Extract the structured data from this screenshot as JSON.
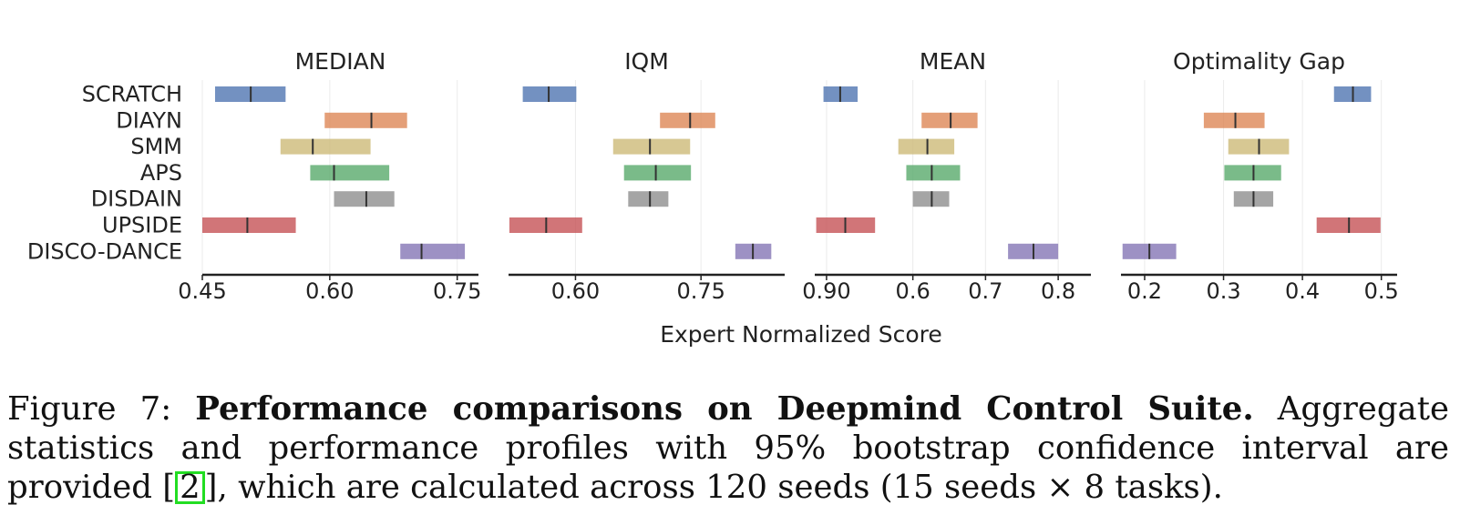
{
  "chart_data": [
    {
      "type": "interval",
      "title": "MEDIAN",
      "xticks": [
        "0.45",
        "0.60",
        "0.75"
      ],
      "xlim": [
        0.45,
        0.775
      ],
      "series": [
        {
          "name": "SCRATCH",
          "low": 0.465,
          "median": 0.507,
          "high": 0.548,
          "color": "#4c72b0"
        },
        {
          "name": "DIAYN",
          "low": 0.594,
          "median": 0.649,
          "high": 0.691,
          "color": "#dd8452"
        },
        {
          "name": "SMM",
          "low": 0.542,
          "median": 0.58,
          "high": 0.648,
          "color": "#ccb974"
        },
        {
          "name": "APS",
          "low": 0.577,
          "median": 0.605,
          "high": 0.67,
          "color": "#55a868"
        },
        {
          "name": "DISDAIN",
          "low": 0.605,
          "median": 0.643,
          "high": 0.676,
          "color": "#8c8c8c"
        },
        {
          "name": "UPSIDE",
          "low": 0.45,
          "median": 0.503,
          "high": 0.56,
          "color": "#c44e52"
        },
        {
          "name": "DISCO-DANCE",
          "low": 0.683,
          "median": 0.708,
          "high": 0.759,
          "color": "#8172b3"
        }
      ]
    },
    {
      "type": "interval",
      "title": "IQM",
      "xticks": [
        "0.60",
        "0.75",
        "0.90"
      ],
      "xlim": [
        0.52,
        0.85
      ],
      "series": [
        {
          "name": "SCRATCH",
          "low": 0.537,
          "median": 0.568,
          "high": 0.601,
          "color": "#4c72b0"
        },
        {
          "name": "DIAYN",
          "low": 0.701,
          "median": 0.737,
          "high": 0.767,
          "color": "#dd8452"
        },
        {
          "name": "SMM",
          "low": 0.645,
          "median": 0.689,
          "high": 0.737,
          "color": "#ccb974"
        },
        {
          "name": "APS",
          "low": 0.658,
          "median": 0.696,
          "high": 0.738,
          "color": "#55a868"
        },
        {
          "name": "DISDAIN",
          "low": 0.663,
          "median": 0.689,
          "high": 0.711,
          "color": "#8c8c8c"
        },
        {
          "name": "UPSIDE",
          "low": 0.521,
          "median": 0.565,
          "high": 0.608,
          "color": "#c44e52"
        },
        {
          "name": "DISCO-DANCE",
          "low": 0.791,
          "median": 0.812,
          "high": 0.834,
          "color": "#8172b3"
        }
      ]
    },
    {
      "type": "interval",
      "title": "MEAN",
      "xticks": [
        "0.6",
        "0.7",
        "0.8"
      ],
      "xlim": [
        0.465,
        0.845
      ],
      "series": [
        {
          "name": "SCRATCH",
          "low": 0.477,
          "median": 0.5,
          "high": 0.524,
          "color": "#4c72b0"
        },
        {
          "name": "DIAYN",
          "low": 0.612,
          "median": 0.652,
          "high": 0.689,
          "color": "#dd8452"
        },
        {
          "name": "SMM",
          "low": 0.58,
          "median": 0.62,
          "high": 0.657,
          "color": "#ccb974"
        },
        {
          "name": "APS",
          "low": 0.591,
          "median": 0.626,
          "high": 0.665,
          "color": "#55a868"
        },
        {
          "name": "DISDAIN",
          "low": 0.6,
          "median": 0.626,
          "high": 0.65,
          "color": "#8c8c8c"
        },
        {
          "name": "UPSIDE",
          "low": 0.467,
          "median": 0.507,
          "high": 0.548,
          "color": "#c44e52"
        },
        {
          "name": "DISCO-DANCE",
          "low": 0.731,
          "median": 0.766,
          "high": 0.8,
          "color": "#8172b3"
        }
      ]
    },
    {
      "type": "interval",
      "title": "Optimality Gap",
      "xticks": [
        "0.2",
        "0.3",
        "0.4",
        "0.5"
      ],
      "xlim": [
        0.17,
        0.52
      ],
      "series": [
        {
          "name": "SCRATCH",
          "low": 0.44,
          "median": 0.464,
          "high": 0.487,
          "color": "#4c72b0"
        },
        {
          "name": "DIAYN",
          "low": 0.275,
          "median": 0.315,
          "high": 0.352,
          "color": "#dd8452"
        },
        {
          "name": "SMM",
          "low": 0.306,
          "median": 0.345,
          "high": 0.383,
          "color": "#ccb974"
        },
        {
          "name": "APS",
          "low": 0.301,
          "median": 0.338,
          "high": 0.373,
          "color": "#55a868"
        },
        {
          "name": "DISDAIN",
          "low": 0.313,
          "median": 0.338,
          "high": 0.363,
          "color": "#8c8c8c"
        },
        {
          "name": "UPSIDE",
          "low": 0.418,
          "median": 0.459,
          "high": 0.499,
          "color": "#c44e52"
        },
        {
          "name": "DISCO-DANCE",
          "low": 0.172,
          "median": 0.206,
          "high": 0.24,
          "color": "#8172b3"
        }
      ]
    }
  ],
  "xlabel": "Expert Normalized Score",
  "caption": {
    "label": "Figure 7:",
    "bold": "Performance comparisons on Deepmind Control Suite.",
    "text_before_cite": "Aggregate statistics and performance profiles with 95% bootstrap confidence interval are provided [",
    "cite": "2",
    "text_after_cite": "], which are calculated across 120 seeds (15 seeds × 8 tasks)."
  }
}
